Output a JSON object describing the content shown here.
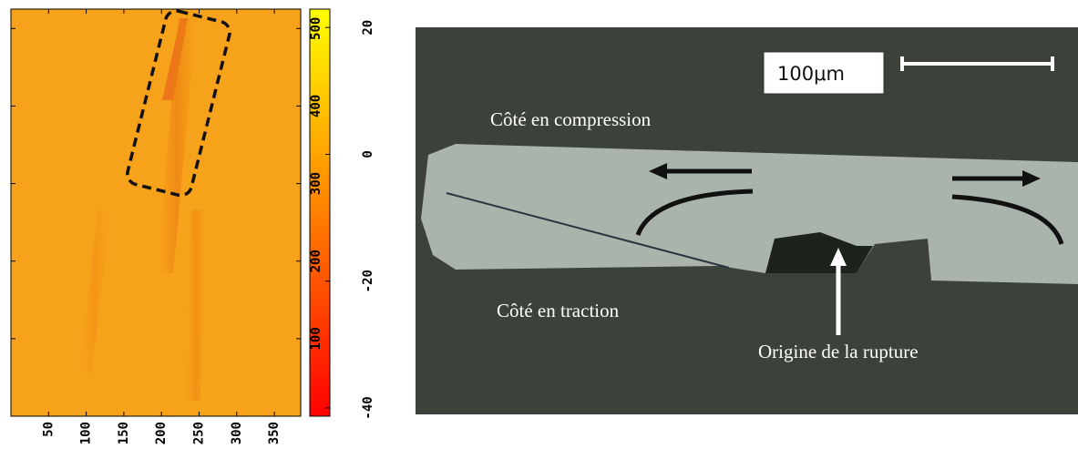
{
  "chart_data": {
    "type": "heatmap",
    "xlim": [
      0,
      385
    ],
    "xticks": [
      50,
      100,
      150,
      200,
      250,
      300,
      350
    ],
    "ylim": [
      0,
      525
    ],
    "yticks": [
      100,
      200,
      300,
      400,
      500
    ],
    "clim": [
      -41.3,
      22.9
    ],
    "cticks": [
      -40,
      -20,
      0,
      20
    ],
    "colormap": [
      "#ff0000",
      "#ffff00"
    ]
  },
  "micrograph": {
    "scale_label": "100μm",
    "top_label": "Côté en compression",
    "bottom_label": "Côté en traction",
    "origin_label": "Origine de la rupture"
  }
}
